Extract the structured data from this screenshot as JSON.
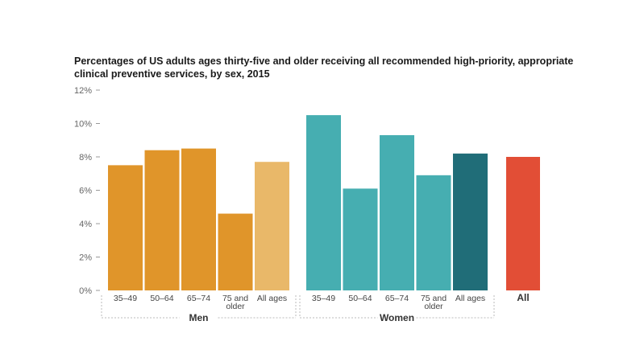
{
  "chart_data": {
    "type": "bar",
    "title": "Percentages of US adults ages thirty-five and older receiving all recommended high-priority, appropriate clinical preventive services, by sex, 2015",
    "ylim": [
      0,
      12
    ],
    "yticks": [
      "0%",
      "2%",
      "4%",
      "6%",
      "8%",
      "10%",
      "12%"
    ],
    "grid": false,
    "groups": [
      {
        "name": "Men",
        "bars": [
          {
            "label": [
              "35–49"
            ],
            "value": 7.5,
            "color": "#E0952A"
          },
          {
            "label": [
              "50–64"
            ],
            "value": 8.4,
            "color": "#E0952A"
          },
          {
            "label": [
              "65–74"
            ],
            "value": 8.5,
            "color": "#E0952A"
          },
          {
            "label": [
              "75 and",
              "older"
            ],
            "value": 4.6,
            "color": "#E0952A"
          },
          {
            "label": [
              "All ages"
            ],
            "value": 7.7,
            "color": "#E9B869"
          }
        ]
      },
      {
        "name": "Women",
        "bars": [
          {
            "label": [
              "35–49"
            ],
            "value": 10.5,
            "color": "#46AEB1"
          },
          {
            "label": [
              "50–64"
            ],
            "value": 6.1,
            "color": "#46AEB1"
          },
          {
            "label": [
              "65–74"
            ],
            "value": 9.3,
            "color": "#46AEB1"
          },
          {
            "label": [
              "75 and",
              "older"
            ],
            "value": 6.9,
            "color": "#46AEB1"
          },
          {
            "label": [
              "All ages"
            ],
            "value": 8.2,
            "color": "#206D78"
          }
        ]
      }
    ],
    "total": {
      "label": "All",
      "value": 8.0,
      "color": "#E24E36"
    }
  }
}
